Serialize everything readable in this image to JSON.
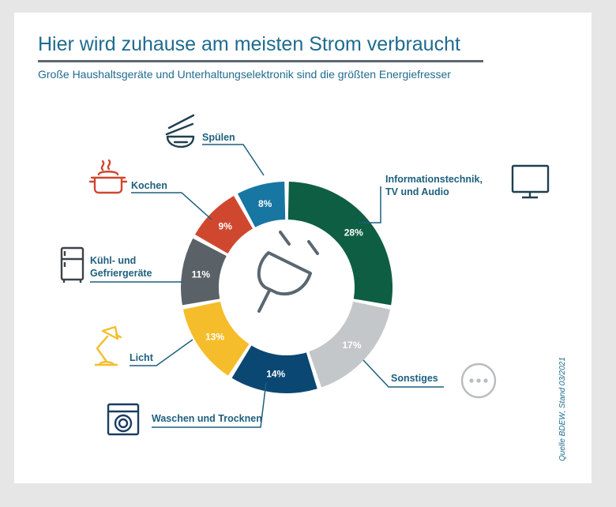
{
  "title": "Hier wird zuhause am meisten Strom verbraucht",
  "subtitle": "Große Haushaltsgeräte und Unterhaltungselektronik sind die größten Energiefresser",
  "source": "Quelle BDEW, Stand 03/2021",
  "colors": {
    "text_blue": "#1f6b8e",
    "label_blue": "#1d5f7e",
    "rule": "#5b6770"
  },
  "chart_data": {
    "type": "pie",
    "donut": true,
    "center_icon": "plug-icon",
    "slices": [
      {
        "label_lines": [
          "Informationstechnik,",
          "TV und Audio"
        ],
        "value": 28,
        "value_label": "28%",
        "color": "#0e5e43",
        "text_color": "#ffffff",
        "icon": "monitor-icon"
      },
      {
        "label_lines": [
          "Sonstiges"
        ],
        "value": 17,
        "value_label": "17%",
        "color": "#c3c7c9",
        "text_color": "#ffffff",
        "icon": "more-icon"
      },
      {
        "label_lines": [
          "Waschen und Trocknen"
        ],
        "value": 14,
        "value_label": "14%",
        "color": "#0b4773",
        "text_color": "#ffffff",
        "icon": "washing-machine-icon"
      },
      {
        "label_lines": [
          "Licht"
        ],
        "value": 13,
        "value_label": "13%",
        "color": "#f5bd2c",
        "text_color": "#ffffff",
        "icon": "desk-lamp-icon"
      },
      {
        "label_lines": [
          "Kühl- und",
          "Gefriergeräte"
        ],
        "value": 11,
        "value_label": "11%",
        "color": "#5a6268",
        "text_color": "#ffffff",
        "icon": "fridge-icon"
      },
      {
        "label_lines": [
          "Kochen"
        ],
        "value": 9,
        "value_label": "9%",
        "color": "#d0472f",
        "text_color": "#ffffff",
        "icon": "cooking-pot-icon"
      },
      {
        "label_lines": [
          "Spülen"
        ],
        "value": 8,
        "value_label": "8%",
        "color": "#1876a3",
        "text_color": "#ffffff",
        "icon": "dishes-icon"
      }
    ]
  }
}
